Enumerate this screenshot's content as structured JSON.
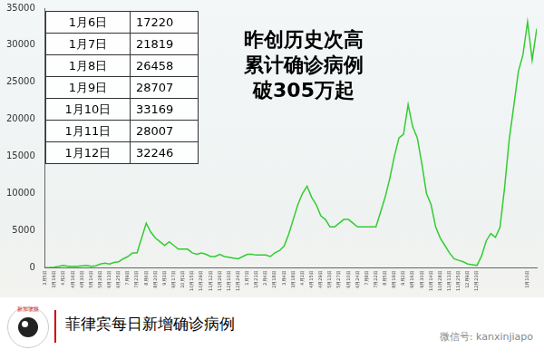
{
  "chart_data": {
    "type": "line",
    "color": "#33cc33",
    "grid": false,
    "ylim": [
      0,
      35000
    ],
    "yticks": [
      0,
      5000,
      10000,
      15000,
      20000,
      25000,
      30000,
      35000
    ],
    "categories": [
      "3月5日",
      null,
      "3月19日",
      null,
      "4月2日",
      null,
      "4月16日",
      null,
      "4月30日",
      null,
      "5月14日",
      null,
      "5月28日",
      null,
      "6月11日",
      null,
      "6月25日",
      null,
      "7月9日",
      null,
      "7月23日",
      null,
      "8月6日",
      null,
      "8月20日",
      null,
      "9月3日",
      null,
      "9月17日",
      null,
      "10月1日",
      null,
      "10月15日",
      null,
      "10月29日",
      null,
      "11月12日",
      null,
      "11月26日",
      null,
      "12月10日",
      null,
      "12月24日",
      null,
      "1月7日",
      null,
      "1月21日",
      null,
      "2月4日",
      null,
      "2月18日",
      null,
      "3月4日",
      null,
      "3月18日",
      null,
      "4月1日",
      null,
      "4月15日",
      null,
      "4月29日",
      null,
      "5月13日",
      null,
      "5月27日",
      null,
      "6月10日",
      null,
      "6月24日",
      null,
      "7月8日",
      null,
      "7月22日",
      null,
      "8月5日",
      null,
      "8月19日",
      null,
      "9月2日",
      null,
      "9月16日",
      null,
      "9月30日",
      null,
      "10月14日",
      null,
      "10月28日",
      null,
      "11月11日",
      null,
      "11月25日",
      null,
      "12月9日",
      null,
      "12月23日",
      null,
      null,
      null,
      null,
      null,
      null,
      null,
      null,
      null,
      null,
      "1月10日",
      null,
      null
    ],
    "values": [
      0,
      20,
      70,
      200,
      300,
      200,
      200,
      200,
      250,
      300,
      200,
      250,
      500,
      600,
      500,
      700,
      800,
      1200,
      1500,
      2000,
      2000,
      4000,
      6000,
      4800,
      4000,
      3500,
      3000,
      3500,
      3000,
      2500,
      2500,
      2500,
      2000,
      1800,
      2000,
      1800,
      1500,
      1500,
      1800,
      1500,
      1400,
      1300,
      1200,
      1500,
      1800,
      1800,
      1700,
      1700,
      1700,
      1500,
      2000,
      2300,
      2900,
      4500,
      6500,
      8500,
      10000,
      11000,
      9500,
      8500,
      7000,
      6500,
      5500,
      5500,
      6000,
      6500,
      6500,
      6000,
      5500,
      5500,
      5500,
      5500,
      5500,
      7500,
      9500,
      12000,
      15000,
      17500,
      18000,
      22000,
      19000,
      17500,
      14000,
      10000,
      8500,
      5500,
      4000,
      3000,
      2000,
      1200,
      1000,
      800,
      500,
      400,
      300,
      1600,
      3617,
      4600,
      4084,
      5434,
      10775,
      17220,
      21819,
      26458,
      28707,
      33169,
      28007,
      32246
    ]
  },
  "table": {
    "rows": [
      [
        "1月6日",
        17220
      ],
      [
        "1月7日",
        21819
      ],
      [
        "1月8日",
        26458
      ],
      [
        "1月9日",
        28707
      ],
      [
        "1月10日",
        33169
      ],
      [
        "1月11日",
        28007
      ],
      [
        "1月12日",
        32246
      ]
    ]
  },
  "headline": [
    "昨创历史次高",
    "累计确诊病例",
    "破305万起"
  ],
  "caption": "菲律宾每日新增确诊病例",
  "logo": "新加坡眼",
  "watermark": "微信号: kanxinjiapo"
}
